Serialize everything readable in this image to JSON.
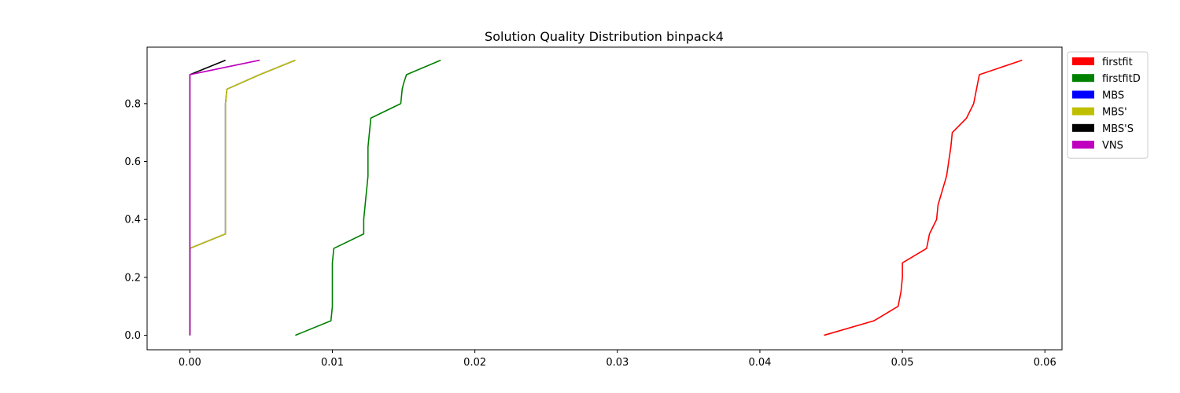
{
  "chart_data": {
    "type": "line",
    "title": "Solution Quality Distribution binpack4",
    "xlabel": "",
    "ylabel": "",
    "xlim": [
      -0.003,
      0.0612
    ],
    "ylim": [
      -0.05,
      0.995
    ],
    "xticks": [
      0.0,
      0.01,
      0.02,
      0.03,
      0.04,
      0.05,
      0.06
    ],
    "xtick_labels": [
      "0.00",
      "0.01",
      "0.02",
      "0.03",
      "0.04",
      "0.05",
      "0.06"
    ],
    "yticks": [
      0.0,
      0.2,
      0.4,
      0.6,
      0.8
    ],
    "ytick_labels": [
      "0.0",
      "0.2",
      "0.4",
      "0.6",
      "0.8"
    ],
    "grid": false,
    "legend_position": "outside-right-top",
    "series": [
      {
        "name": "firstfit",
        "color": "#ff0000",
        "x": [
          0.0445,
          0.048,
          0.0497,
          0.0499,
          0.05,
          0.05,
          0.0517,
          0.0519,
          0.0524,
          0.0525,
          0.0531,
          0.0534,
          0.0535,
          0.0545,
          0.055,
          0.0554,
          0.0584
        ],
        "y": [
          0.0,
          0.05,
          0.1,
          0.15,
          0.2,
          0.25,
          0.3,
          0.35,
          0.4,
          0.45,
          0.55,
          0.65,
          0.7,
          0.75,
          0.8,
          0.9,
          0.95
        ]
      },
      {
        "name": "firstfitD",
        "color": "#008000",
        "x": [
          0.0074,
          0.0099,
          0.01,
          0.01,
          0.0101,
          0.0122,
          0.0122,
          0.0123,
          0.0124,
          0.0125,
          0.0125,
          0.0126,
          0.0127,
          0.0148,
          0.0149,
          0.015,
          0.0152,
          0.0176
        ],
        "y": [
          0.0,
          0.05,
          0.1,
          0.25,
          0.3,
          0.35,
          0.4,
          0.45,
          0.5,
          0.55,
          0.65,
          0.7,
          0.75,
          0.8,
          0.85,
          0.87,
          0.9,
          0.95
        ]
      },
      {
        "name": "MBS",
        "color": "#0000ff",
        "x": [
          0.0,
          0.0,
          0.0025,
          0.0025,
          0.0026,
          0.0049,
          0.0074
        ],
        "y": [
          0.0,
          0.3,
          0.35,
          0.8,
          0.85,
          0.9,
          0.95
        ]
      },
      {
        "name": "MBS'",
        "color": "#bfbf00",
        "x": [
          0.0,
          0.0,
          0.0025,
          0.0025,
          0.0026,
          0.0049,
          0.0074
        ],
        "y": [
          0.0,
          0.3,
          0.35,
          0.8,
          0.85,
          0.9,
          0.95
        ]
      },
      {
        "name": "MBS'S",
        "color": "#000000",
        "x": [
          0.0,
          0.0,
          0.0025
        ],
        "y": [
          0.0,
          0.9,
          0.95
        ]
      },
      {
        "name": "VNS",
        "color": "#bf00bf",
        "x": [
          0.0,
          0.0,
          0.0049
        ],
        "y": [
          0.0,
          0.9,
          0.95
        ]
      }
    ]
  }
}
